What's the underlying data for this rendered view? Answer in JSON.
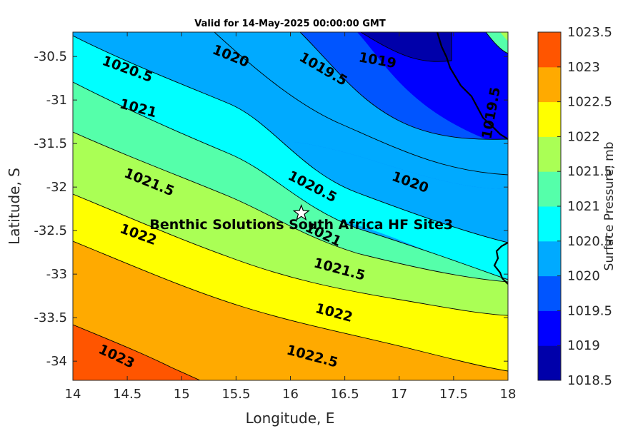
{
  "chart_data": {
    "type": "contour",
    "title": "Valid for 14-May-2025 00:00:00 GMT",
    "xlabel": "Longitude, E",
    "ylabel": "Latitude, S",
    "xlim": [
      14,
      18
    ],
    "ylim": [
      -34.22,
      -30.22
    ],
    "xticks": [
      "14",
      "14.5",
      "15",
      "15.5",
      "16",
      "16.5",
      "17",
      "17.5",
      "18"
    ],
    "yticks": [
      "-30.5",
      "-31",
      "-31.5",
      "-32",
      "-32.5",
      "-33",
      "-33.5",
      "-34"
    ],
    "variable": "Surface Pressure, mb",
    "colorbar": {
      "title": "Surface Pressure, mb",
      "levels": [
        "1018.5",
        "1019",
        "1019.5",
        "1020",
        "1020.5",
        "1021",
        "1021.5",
        "1022",
        "1022.5",
        "1023",
        "1023.5"
      ],
      "colors": [
        "#0000aa",
        "#0000ff",
        "#0055ff",
        "#00aaff",
        "#00ffff",
        "#55ffaa",
        "#aaff55",
        "#ffff00",
        "#ffaa00",
        "#ff5500",
        "#ff0000"
      ]
    },
    "contour_labels": [
      {
        "text": "1020.5",
        "lon": 14.5,
        "lat": -30.65
      },
      {
        "text": "1020",
        "lon": 15.45,
        "lat": -30.5
      },
      {
        "text": "1019.5",
        "lon": 16.3,
        "lat": -30.65
      },
      {
        "text": "1019",
        "lon": 16.8,
        "lat": -30.55
      },
      {
        "text": "1019.5",
        "lon": 17.85,
        "lat": -31.15
      },
      {
        "text": "1021",
        "lon": 14.6,
        "lat": -31.1
      },
      {
        "text": "1021.5",
        "lon": 14.7,
        "lat": -31.95
      },
      {
        "text": "1020.5",
        "lon": 16.2,
        "lat": -32.0
      },
      {
        "text": "1020",
        "lon": 17.1,
        "lat": -31.95
      },
      {
        "text": "1022",
        "lon": 14.6,
        "lat": -32.55
      },
      {
        "text": "1021",
        "lon": 16.3,
        "lat": -32.55
      },
      {
        "text": "1021.5",
        "lon": 16.45,
        "lat": -32.95
      },
      {
        "text": "1022",
        "lon": 16.4,
        "lat": -33.45
      },
      {
        "text": "1022.5",
        "lon": 16.2,
        "lat": -33.95
      },
      {
        "text": "1023",
        "lon": 14.4,
        "lat": -33.95
      }
    ],
    "site": {
      "name": "Benthic Solutions South Africa HF Site3",
      "lon": 16.1,
      "lat": -32.3,
      "marker": "star"
    }
  }
}
